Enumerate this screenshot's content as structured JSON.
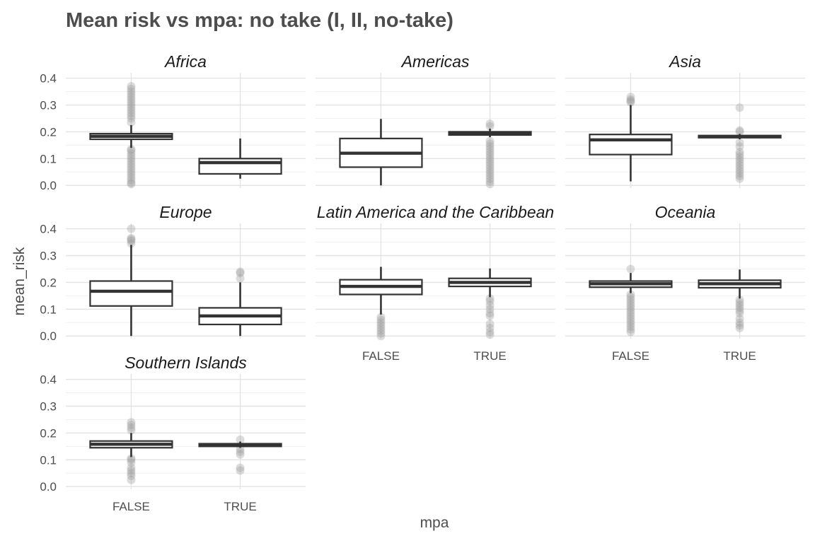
{
  "chart_data": {
    "type": "boxplot",
    "title": "Mean risk vs mpa: no take (I, II, no-take)",
    "xlabel": "mpa",
    "ylabel": "mean_risk",
    "categories": [
      "FALSE",
      "TRUE"
    ],
    "ylim": [
      -0.01,
      0.42
    ],
    "yticks": [
      0.0,
      0.1,
      0.2,
      0.3,
      0.4
    ],
    "ytick_labels": [
      "0.0",
      "0.1",
      "0.2",
      "0.3",
      "0.4"
    ],
    "grid": true,
    "facets": [
      {
        "name": "Africa",
        "boxes": [
          {
            "category": "FALSE",
            "min": 0.14,
            "q1": 0.172,
            "median": 0.183,
            "q3": 0.193,
            "max": 0.225,
            "outliers": [
              0.005,
              0.01,
              0.02,
              0.03,
              0.04,
              0.05,
              0.06,
              0.07,
              0.08,
              0.09,
              0.1,
              0.11,
              0.12,
              0.13,
              0.135,
              0.235,
              0.25,
              0.26,
              0.27,
              0.28,
              0.29,
              0.3,
              0.31,
              0.32,
              0.33,
              0.34,
              0.35,
              0.36,
              0.37
            ]
          },
          {
            "category": "TRUE",
            "min": 0.025,
            "q1": 0.043,
            "median": 0.085,
            "q3": 0.1,
            "max": 0.175,
            "outliers": []
          }
        ]
      },
      {
        "name": "Americas",
        "boxes": [
          {
            "category": "FALSE",
            "min": 0.0,
            "q1": 0.068,
            "median": 0.12,
            "q3": 0.175,
            "max": 0.248,
            "outliers": []
          },
          {
            "category": "TRUE",
            "min": 0.18,
            "q1": 0.188,
            "median": 0.193,
            "q3": 0.2,
            "max": 0.212,
            "outliers": [
              0.005,
              0.015,
              0.025,
              0.035,
              0.045,
              0.055,
              0.065,
              0.075,
              0.085,
              0.095,
              0.105,
              0.115,
              0.125,
              0.135,
              0.145,
              0.155,
              0.165,
              0.22,
              0.23
            ]
          }
        ]
      },
      {
        "name": "Asia",
        "boxes": [
          {
            "category": "FALSE",
            "min": 0.015,
            "q1": 0.115,
            "median": 0.17,
            "q3": 0.19,
            "max": 0.3,
            "outliers": [
              0.31,
              0.315,
              0.32,
              0.33
            ]
          },
          {
            "category": "TRUE",
            "min": 0.172,
            "q1": 0.178,
            "median": 0.182,
            "q3": 0.186,
            "max": 0.192,
            "outliers": [
              0.025,
              0.035,
              0.045,
              0.055,
              0.065,
              0.075,
              0.085,
              0.095,
              0.105,
              0.115,
              0.125,
              0.145,
              0.16,
              0.2,
              0.205,
              0.29
            ]
          }
        ]
      },
      {
        "name": "Europe",
        "boxes": [
          {
            "category": "FALSE",
            "min": 0.0,
            "q1": 0.112,
            "median": 0.167,
            "q3": 0.205,
            "max": 0.34,
            "outliers": [
              0.345,
              0.355,
              0.36,
              0.365,
              0.4
            ]
          },
          {
            "category": "TRUE",
            "min": 0.0,
            "q1": 0.043,
            "median": 0.075,
            "q3": 0.105,
            "max": 0.2,
            "outliers": [
              0.215,
              0.235,
              0.24
            ]
          }
        ]
      },
      {
        "name": "Latin America and the Caribbean",
        "boxes": [
          {
            "category": "FALSE",
            "min": 0.08,
            "q1": 0.155,
            "median": 0.185,
            "q3": 0.21,
            "max": 0.258,
            "outliers": [
              0.0,
              0.01,
              0.02,
              0.03,
              0.04,
              0.05,
              0.06,
              0.07
            ]
          },
          {
            "category": "TRUE",
            "min": 0.145,
            "q1": 0.185,
            "median": 0.2,
            "q3": 0.215,
            "max": 0.252,
            "outliers": [
              0.005,
              0.015,
              0.03,
              0.045,
              0.075,
              0.085,
              0.1,
              0.115,
              0.13,
              0.14
            ]
          }
        ]
      },
      {
        "name": "Oceania",
        "boxes": [
          {
            "category": "FALSE",
            "min": 0.16,
            "q1": 0.182,
            "median": 0.195,
            "q3": 0.205,
            "max": 0.235,
            "outliers": [
              0.015,
              0.025,
              0.035,
              0.045,
              0.055,
              0.065,
              0.075,
              0.085,
              0.095,
              0.105,
              0.115,
              0.125,
              0.135,
              0.145,
              0.155,
              0.25
            ]
          },
          {
            "category": "TRUE",
            "min": 0.14,
            "q1": 0.18,
            "median": 0.195,
            "q3": 0.208,
            "max": 0.248,
            "outliers": [
              0.03,
              0.04,
              0.05,
              0.065,
              0.085,
              0.095,
              0.105,
              0.115,
              0.125,
              0.135
            ]
          }
        ]
      },
      {
        "name": "Southern Islands",
        "boxes": [
          {
            "category": "FALSE",
            "min": 0.11,
            "q1": 0.145,
            "median": 0.158,
            "q3": 0.17,
            "max": 0.2,
            "outliers": [
              0.025,
              0.04,
              0.05,
              0.06,
              0.07,
              0.09,
              0.1,
              0.105,
              0.21,
              0.22,
              0.23,
              0.24
            ]
          },
          {
            "category": "TRUE",
            "min": 0.145,
            "q1": 0.15,
            "median": 0.155,
            "q3": 0.16,
            "max": 0.168,
            "outliers": [
              0.06,
              0.07,
              0.12,
              0.13,
              0.14,
              0.175
            ]
          }
        ]
      }
    ]
  }
}
